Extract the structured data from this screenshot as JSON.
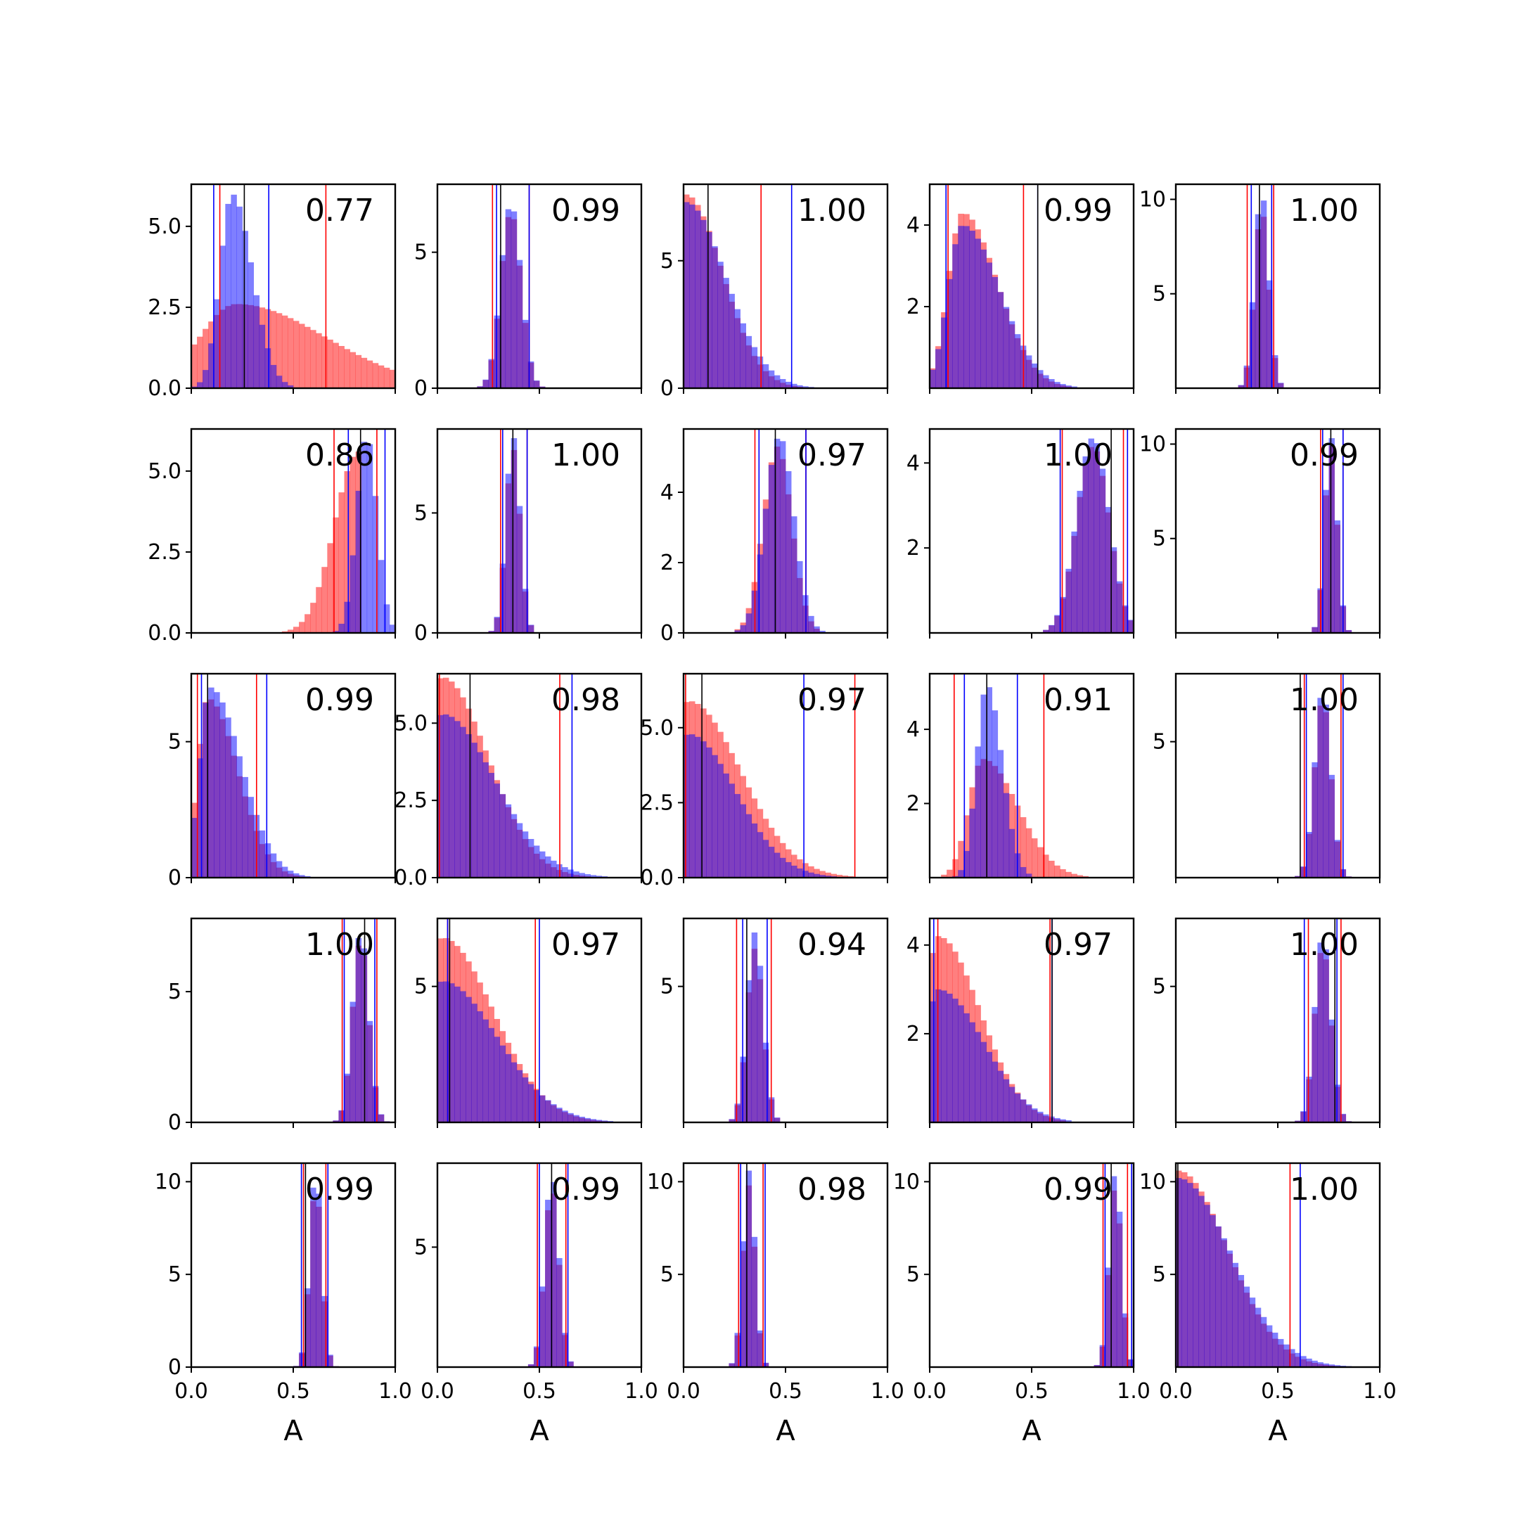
{
  "figure": {
    "colors": {
      "series_a": "#ff0000",
      "series_b": "#0000ff",
      "mean_line": "#000000",
      "frame": "#000000"
    },
    "xlabel": "A",
    "x_ticks": [
      "0.0",
      "0.5",
      "1.0"
    ]
  },
  "chart_data": [
    {
      "type": "bar",
      "x_range": [
        0,
        1
      ],
      "ylim": [
        0,
        6.3
      ],
      "y_ticks": [
        "0.0",
        "2.5",
        "5.0"
      ],
      "score": "0.77",
      "series": [
        {
          "color": "#ff0000",
          "lines": [
            0.14,
            0.66
          ],
          "peak": 0.22,
          "width": 0.18,
          "skew": 0.9,
          "height": 2.6
        },
        {
          "color": "#0000ff",
          "lines": [
            0.11,
            0.38
          ],
          "peak": 0.2,
          "width": 0.06,
          "skew": 0.4,
          "height": 6.0
        },
        {
          "color": "#000000",
          "lines": [
            0.26
          ]
        }
      ]
    },
    {
      "type": "bar",
      "x_range": [
        0,
        1
      ],
      "ylim": [
        0,
        7.5
      ],
      "y_ticks": [
        "0",
        "5"
      ],
      "score": "0.99",
      "series": [
        {
          "color": "#ff0000",
          "lines": [
            0.27,
            0.45
          ],
          "peak": 0.36,
          "width": 0.05,
          "skew": 0,
          "height": 6.5
        },
        {
          "color": "#0000ff",
          "lines": [
            0.29,
            0.45
          ],
          "peak": 0.36,
          "width": 0.05,
          "skew": 0,
          "height": 6.8
        },
        {
          "color": "#000000",
          "lines": [
            0.31
          ]
        }
      ]
    },
    {
      "type": "bar",
      "x_range": [
        0,
        1
      ],
      "ylim": [
        0,
        8
      ],
      "y_ticks": [
        "0",
        "5"
      ],
      "score": "1.00",
      "series": [
        {
          "color": "#ff0000",
          "lines": [
            0.38
          ],
          "peak": 0.01,
          "width": 0.05,
          "skew": 1.6,
          "height": 7.6
        },
        {
          "color": "#0000ff",
          "lines": [
            0.53
          ],
          "peak": 0.01,
          "width": 0.05,
          "skew": 1.8,
          "height": 7.3
        },
        {
          "color": "#000000",
          "lines": [
            0.12
          ]
        }
      ]
    },
    {
      "type": "bar",
      "x_range": [
        0,
        1
      ],
      "ylim": [
        0,
        5
      ],
      "y_ticks": [
        "2",
        "4"
      ],
      "score": "0.99",
      "series": [
        {
          "color": "#ff0000",
          "lines": [
            0.09,
            0.46
          ],
          "peak": 0.16,
          "width": 0.07,
          "skew": 0.9,
          "height": 4.3
        },
        {
          "color": "#0000ff",
          "lines": [
            0.08,
            0.53
          ],
          "peak": 0.16,
          "width": 0.07,
          "skew": 1.0,
          "height": 4.0
        },
        {
          "color": "#000000",
          "lines": [
            0.53
          ]
        }
      ]
    },
    {
      "type": "bar",
      "x_range": [
        0,
        1
      ],
      "ylim": [
        0,
        10.8
      ],
      "y_ticks": [
        "5",
        "10"
      ],
      "score": "1.00",
      "series": [
        {
          "color": "#ff0000",
          "lines": [
            0.35,
            0.48
          ],
          "peak": 0.42,
          "width": 0.035,
          "skew": 0,
          "height": 9.5
        },
        {
          "color": "#0000ff",
          "lines": [
            0.37,
            0.47
          ],
          "peak": 0.42,
          "width": 0.035,
          "skew": 0,
          "height": 10.4
        },
        {
          "color": "#000000",
          "lines": [
            0.41
          ]
        }
      ]
    },
    {
      "type": "bar",
      "x_range": [
        0,
        1
      ],
      "ylim": [
        0,
        6.3
      ],
      "y_ticks": [
        "0.0",
        "2.5",
        "5.0"
      ],
      "score": "0.86",
      "series": [
        {
          "color": "#ff0000",
          "lines": [
            0.7,
            0.91
          ],
          "peak": 0.82,
          "width": 0.06,
          "skew": -0.6,
          "height": 5.6
        },
        {
          "color": "#0000ff",
          "lines": [
            0.77,
            0.95
          ],
          "peak": 0.86,
          "width": 0.05,
          "skew": 0,
          "height": 6.1
        },
        {
          "color": "#000000",
          "lines": [
            0.83
          ]
        }
      ]
    },
    {
      "type": "bar",
      "x_range": [
        0,
        1
      ],
      "ylim": [
        0,
        8.5
      ],
      "y_ticks": [
        "0",
        "5"
      ],
      "score": "1.00",
      "series": [
        {
          "color": "#ff0000",
          "lines": [
            0.31,
            0.44
          ],
          "peak": 0.37,
          "width": 0.035,
          "skew": 0,
          "height": 7.7
        },
        {
          "color": "#0000ff",
          "lines": [
            0.32,
            0.44
          ],
          "peak": 0.37,
          "width": 0.035,
          "skew": 0,
          "height": 8.2
        },
        {
          "color": "#000000",
          "lines": [
            0.37
          ]
        }
      ]
    },
    {
      "type": "bar",
      "x_range": [
        0,
        1
      ],
      "ylim": [
        0,
        5.8
      ],
      "y_ticks": [
        "0",
        "2",
        "4"
      ],
      "score": "0.97",
      "series": [
        {
          "color": "#ff0000",
          "lines": [
            0.35,
            0.6
          ],
          "peak": 0.46,
          "width": 0.07,
          "skew": 0,
          "height": 5.3
        },
        {
          "color": "#0000ff",
          "lines": [
            0.37,
            0.6
          ],
          "peak": 0.47,
          "width": 0.07,
          "skew": 0,
          "height": 5.6
        },
        {
          "color": "#000000",
          "lines": [
            0.45
          ]
        }
      ]
    },
    {
      "type": "bar",
      "x_range": [
        0,
        1
      ],
      "ylim": [
        0,
        4.8
      ],
      "y_ticks": [
        "2",
        "4"
      ],
      "score": "1.00",
      "series": [
        {
          "color": "#ff0000",
          "lines": [
            0.65,
            0.95
          ],
          "peak": 0.8,
          "width": 0.08,
          "skew": 0,
          "height": 4.4
        },
        {
          "color": "#0000ff",
          "lines": [
            0.64,
            0.97
          ],
          "peak": 0.8,
          "width": 0.08,
          "skew": 0,
          "height": 4.6
        },
        {
          "color": "#000000",
          "lines": [
            0.89
          ]
        }
      ]
    },
    {
      "type": "bar",
      "x_range": [
        0,
        1
      ],
      "ylim": [
        0,
        10.8
      ],
      "y_ticks": [
        "5",
        "10"
      ],
      "score": "0.99",
      "series": [
        {
          "color": "#ff0000",
          "lines": [
            0.71,
            0.82
          ],
          "peak": 0.76,
          "width": 0.03,
          "skew": 0,
          "height": 10.0
        },
        {
          "color": "#0000ff",
          "lines": [
            0.72,
            0.82
          ],
          "peak": 0.76,
          "width": 0.03,
          "skew": 0,
          "height": 10.4
        },
        {
          "color": "#000000",
          "lines": [
            0.76
          ]
        }
      ]
    },
    {
      "type": "bar",
      "x_range": [
        0,
        1
      ],
      "ylim": [
        0,
        7.5
      ],
      "y_ticks": [
        "0",
        "5"
      ],
      "score": "0.99",
      "series": [
        {
          "color": "#ff0000",
          "lines": [
            0.03,
            0.32
          ],
          "peak": 0.08,
          "width": 0.05,
          "skew": 1.2,
          "height": 6.6
        },
        {
          "color": "#0000ff",
          "lines": [
            0.05,
            0.37
          ],
          "peak": 0.09,
          "width": 0.05,
          "skew": 1.3,
          "height": 7.0
        },
        {
          "color": "#000000",
          "lines": [
            0.08
          ]
        }
      ]
    },
    {
      "type": "bar",
      "x_range": [
        0,
        1
      ],
      "ylim": [
        0,
        6.6
      ],
      "y_ticks": [
        "0.0",
        "2.5",
        "5.0"
      ],
      "score": "0.98",
      "series": [
        {
          "color": "#ff0000",
          "lines": [
            0.01,
            0.6
          ],
          "peak": 0.02,
          "width": 0.05,
          "skew": 2.2,
          "height": 6.5
        },
        {
          "color": "#0000ff",
          "lines": [
            0.66
          ],
          "peak": 0.02,
          "width": 0.05,
          "skew": 2.6,
          "height": 5.3
        },
        {
          "color": "#000000",
          "lines": [
            0.16
          ]
        }
      ]
    },
    {
      "type": "bar",
      "x_range": [
        0,
        1
      ],
      "ylim": [
        0,
        6.8
      ],
      "y_ticks": [
        "0.0",
        "2.5",
        "5.0"
      ],
      "score": "0.97",
      "series": [
        {
          "color": "#ff0000",
          "lines": [
            0.01,
            0.84
          ],
          "peak": 0.02,
          "width": 0.05,
          "skew": 2.6,
          "height": 5.9
        },
        {
          "color": "#0000ff",
          "lines": [
            0.59
          ],
          "peak": 0.02,
          "width": 0.05,
          "skew": 2.3,
          "height": 4.8
        },
        {
          "color": "#000000",
          "lines": [
            0.09
          ]
        }
      ]
    },
    {
      "type": "bar",
      "x_range": [
        0,
        1
      ],
      "ylim": [
        0,
        5.5
      ],
      "y_ticks": [
        "2",
        "4"
      ],
      "score": "0.91",
      "series": [
        {
          "color": "#ff0000",
          "lines": [
            0.12,
            0.56
          ],
          "peak": 0.26,
          "width": 0.07,
          "skew": 0.9,
          "height": 3.2
        },
        {
          "color": "#0000ff",
          "lines": [
            0.17,
            0.43
          ],
          "peak": 0.28,
          "width": 0.05,
          "skew": 0.3,
          "height": 5.2
        },
        {
          "color": "#000000",
          "lines": [
            0.28
          ]
        }
      ]
    },
    {
      "type": "bar",
      "x_range": [
        0,
        1
      ],
      "ylim": [
        0,
        7.5
      ],
      "y_ticks": [
        "5"
      ],
      "score": "1.00",
      "series": [
        {
          "color": "#ff0000",
          "lines": [
            0.63,
            0.81
          ],
          "peak": 0.72,
          "width": 0.04,
          "skew": 0,
          "height": 6.6
        },
        {
          "color": "#0000ff",
          "lines": [
            0.64,
            0.82
          ],
          "peak": 0.72,
          "width": 0.04,
          "skew": 0,
          "height": 6.9
        },
        {
          "color": "#000000",
          "lines": [
            0.61
          ]
        }
      ]
    },
    {
      "type": "bar",
      "x_range": [
        0,
        1
      ],
      "ylim": [
        0,
        7.8
      ],
      "y_ticks": [
        "0",
        "5"
      ],
      "score": "1.00",
      "series": [
        {
          "color": "#ff0000",
          "lines": [
            0.74,
            0.91
          ],
          "peak": 0.83,
          "width": 0.04,
          "skew": 0,
          "height": 7.0
        },
        {
          "color": "#0000ff",
          "lines": [
            0.75,
            0.9
          ],
          "peak": 0.83,
          "width": 0.04,
          "skew": 0,
          "height": 7.3
        },
        {
          "color": "#000000",
          "lines": [
            0.85
          ]
        }
      ]
    },
    {
      "type": "bar",
      "x_range": [
        0,
        1
      ],
      "ylim": [
        0,
        7.5
      ],
      "y_ticks": [
        "5"
      ],
      "score": "0.97",
      "series": [
        {
          "color": "#ff0000",
          "lines": [
            0.05,
            0.48
          ],
          "peak": 0.02,
          "width": 0.06,
          "skew": 2.0,
          "height": 6.8
        },
        {
          "color": "#0000ff",
          "lines": [
            0.05,
            0.5
          ],
          "peak": 0.02,
          "width": 0.06,
          "skew": 2.2,
          "height": 5.2
        },
        {
          "color": "#000000",
          "lines": [
            0.06
          ]
        }
      ]
    },
    {
      "type": "bar",
      "x_range": [
        0,
        1
      ],
      "ylim": [
        0,
        7.5
      ],
      "y_ticks": [
        "5"
      ],
      "score": "0.94",
      "series": [
        {
          "color": "#ff0000",
          "lines": [
            0.26,
            0.43
          ],
          "peak": 0.35,
          "width": 0.04,
          "skew": 0,
          "height": 6.4
        },
        {
          "color": "#0000ff",
          "lines": [
            0.29,
            0.41
          ],
          "peak": 0.35,
          "width": 0.04,
          "skew": 0,
          "height": 7.0
        },
        {
          "color": "#000000",
          "lines": [
            0.31
          ]
        }
      ]
    },
    {
      "type": "bar",
      "x_range": [
        0,
        1
      ],
      "ylim": [
        0,
        4.6
      ],
      "y_ticks": [
        "2",
        "4"
      ],
      "score": "0.97",
      "series": [
        {
          "color": "#ff0000",
          "lines": [
            0.04,
            0.59
          ],
          "peak": 0.04,
          "width": 0.06,
          "skew": 1.5,
          "height": 4.2
        },
        {
          "color": "#0000ff",
          "lines": [
            0.02,
            0.6
          ],
          "peak": 0.04,
          "width": 0.06,
          "skew": 1.7,
          "height": 3.0
        },
        {
          "color": "#000000",
          "lines": [
            0.6
          ]
        }
      ]
    },
    {
      "type": "bar",
      "x_range": [
        0,
        1
      ],
      "ylim": [
        0,
        7.5
      ],
      "y_ticks": [
        "5"
      ],
      "score": "1.00",
      "series": [
        {
          "color": "#ff0000",
          "lines": [
            0.65,
            0.81
          ],
          "peak": 0.72,
          "width": 0.04,
          "skew": 0,
          "height": 6.5
        },
        {
          "color": "#0000ff",
          "lines": [
            0.63,
            0.79
          ],
          "peak": 0.72,
          "width": 0.04,
          "skew": 0,
          "height": 6.9
        },
        {
          "color": "#000000",
          "lines": [
            0.78
          ]
        }
      ]
    },
    {
      "type": "bar",
      "x_range": [
        0,
        1
      ],
      "ylim": [
        0,
        11
      ],
      "y_ticks": [
        "0",
        "5",
        "10"
      ],
      "score": "0.99",
      "series": [
        {
          "color": "#ff0000",
          "lines": [
            0.55,
            0.66
          ],
          "peak": 0.61,
          "width": 0.03,
          "skew": 0,
          "height": 9.8
        },
        {
          "color": "#0000ff",
          "lines": [
            0.54,
            0.67
          ],
          "peak": 0.61,
          "width": 0.03,
          "skew": 0,
          "height": 10.6
        },
        {
          "color": "#000000",
          "lines": [
            0.56
          ]
        }
      ]
    },
    {
      "type": "bar",
      "x_range": [
        0,
        1
      ],
      "ylim": [
        0,
        8.5
      ],
      "y_ticks": [
        "5"
      ],
      "score": "0.99",
      "series": [
        {
          "color": "#ff0000",
          "lines": [
            0.49,
            0.63
          ],
          "peak": 0.56,
          "width": 0.035,
          "skew": 0,
          "height": 7.5
        },
        {
          "color": "#0000ff",
          "lines": [
            0.5,
            0.64
          ],
          "peak": 0.56,
          "width": 0.035,
          "skew": 0,
          "height": 8.0
        },
        {
          "color": "#000000",
          "lines": [
            0.56
          ]
        }
      ]
    },
    {
      "type": "bar",
      "x_range": [
        0,
        1
      ],
      "ylim": [
        0,
        11
      ],
      "y_ticks": [
        "5",
        "10"
      ],
      "score": "0.98",
      "series": [
        {
          "color": "#ff0000",
          "lines": [
            0.27,
            0.39
          ],
          "peak": 0.32,
          "width": 0.03,
          "skew": 0,
          "height": 9.8
        },
        {
          "color": "#0000ff",
          "lines": [
            0.28,
            0.4
          ],
          "peak": 0.32,
          "width": 0.03,
          "skew": 0,
          "height": 10.6
        },
        {
          "color": "#000000",
          "lines": [
            0.31
          ]
        }
      ]
    },
    {
      "type": "bar",
      "x_range": [
        0,
        1
      ],
      "ylim": [
        0,
        11
      ],
      "y_ticks": [
        "5",
        "10"
      ],
      "score": "0.99",
      "series": [
        {
          "color": "#ff0000",
          "lines": [
            0.85,
            0.97
          ],
          "peak": 0.91,
          "width": 0.03,
          "skew": 0,
          "height": 9.8
        },
        {
          "color": "#0000ff",
          "lines": [
            0.86,
            0.99
          ],
          "peak": 0.91,
          "width": 0.03,
          "skew": 0,
          "height": 10.6
        },
        {
          "color": "#000000",
          "lines": [
            0.89
          ]
        }
      ]
    },
    {
      "type": "bar",
      "x_range": [
        0,
        1
      ],
      "ylim": [
        0,
        11
      ],
      "y_ticks": [
        "5",
        "10"
      ],
      "score": "1.00",
      "series": [
        {
          "color": "#ff0000",
          "lines": [
            0.56
          ],
          "peak": 0.01,
          "width": 0.05,
          "skew": 2.4,
          "height": 10.6
        },
        {
          "color": "#0000ff",
          "lines": [
            0.61
          ],
          "peak": 0.01,
          "width": 0.05,
          "skew": 2.6,
          "height": 10.2
        },
        {
          "color": "#000000",
          "lines": [
            0.01
          ]
        }
      ]
    }
  ]
}
